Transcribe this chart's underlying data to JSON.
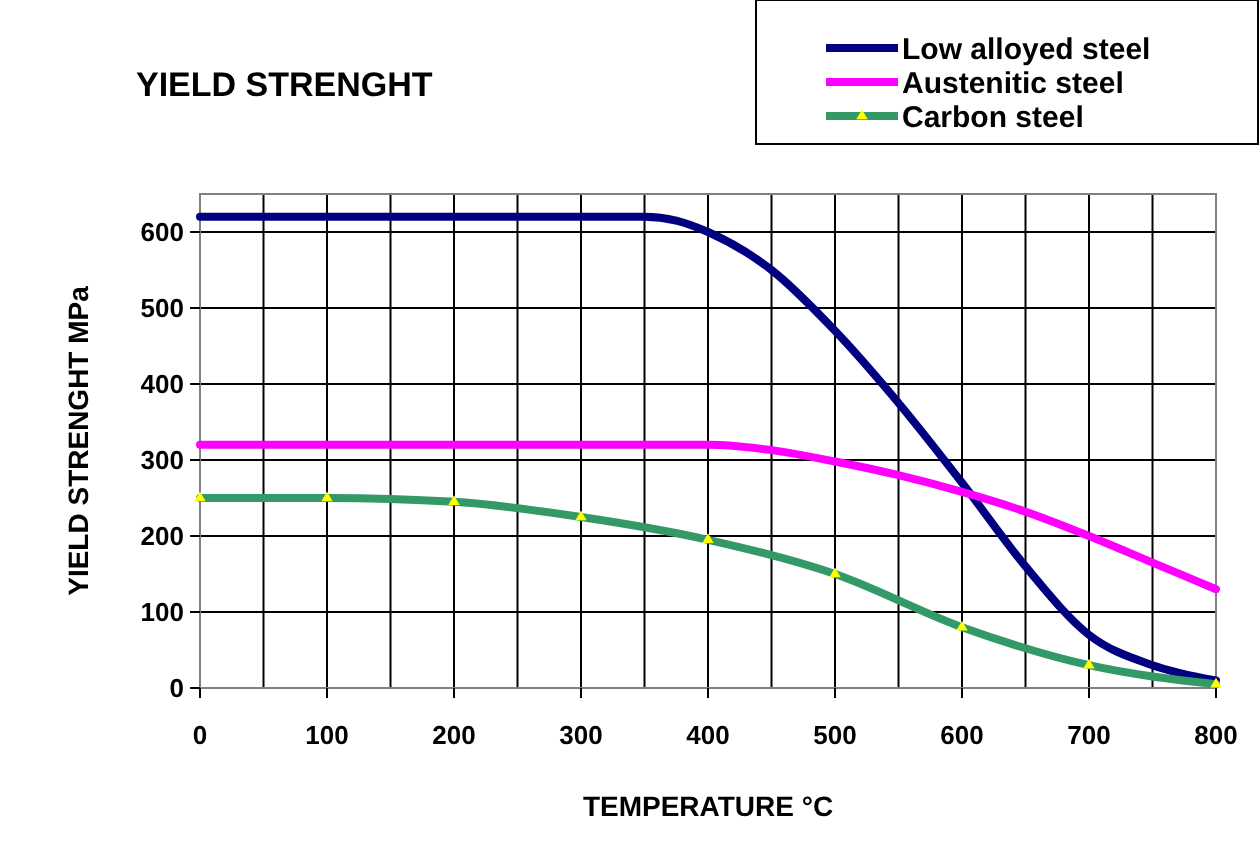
{
  "chart_data": {
    "type": "line",
    "title": "YIELD STRENGHT",
    "xlabel": "TEMPERATURE °C",
    "ylabel": "YIELD STRENGHT MPa",
    "xlim": [
      0,
      800
    ],
    "xticks": [
      0,
      100,
      200,
      300,
      400,
      500,
      600,
      700,
      800
    ],
    "ylim": [
      0,
      650
    ],
    "yticks": [
      0,
      100,
      200,
      300,
      400,
      500,
      600
    ],
    "grid": true,
    "legend": "top right",
    "line_style": "solid",
    "series": [
      {
        "name": "Low alloyed steel",
        "color": "#000080",
        "marker": "none",
        "x": [
          0,
          100,
          200,
          300,
          350,
          375,
          400,
          450,
          500,
          550,
          600,
          650,
          700,
          750,
          800
        ],
        "values": [
          620,
          620,
          620,
          620,
          620,
          615,
          600,
          550,
          470,
          375,
          270,
          160,
          70,
          30,
          10
        ]
      },
      {
        "name": "Austenitic steel",
        "color": "#ff00ff",
        "marker": "none",
        "x": [
          0,
          100,
          200,
          300,
          400,
          450,
          500,
          550,
          600,
          650,
          700,
          750,
          800
        ],
        "values": [
          320,
          320,
          320,
          320,
          320,
          313,
          298,
          280,
          258,
          232,
          200,
          165,
          130
        ]
      },
      {
        "name": "Carbon steel",
        "color": "#339966",
        "marker": "triangle",
        "x": [
          0,
          100,
          200,
          300,
          400,
          500,
          600,
          700,
          800
        ],
        "values": [
          250,
          250,
          245,
          225,
          195,
          150,
          80,
          30,
          5
        ]
      }
    ]
  }
}
